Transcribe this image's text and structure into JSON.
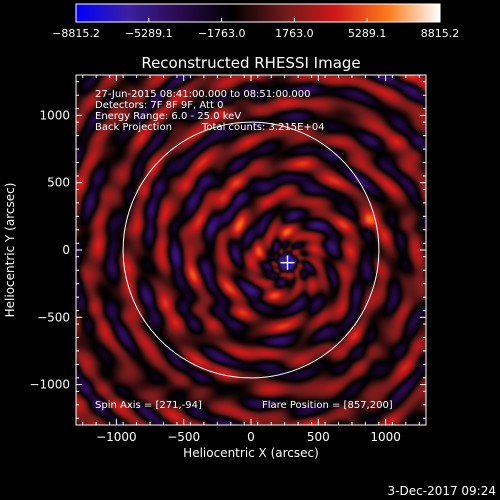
{
  "colors": {
    "background": "#000000",
    "axis": "#ffffff",
    "limb_circle": "#ffffff",
    "text": "#ffffff",
    "colormap": [
      "#0000ff",
      "#3b1fa0",
      "#2a0a4e",
      "#000000",
      "#6b1a1a",
      "#d01818",
      "#ff7a1a",
      "#ffffff"
    ]
  },
  "chart_data": {
    "type": "heatmap",
    "title": "Reconstructed RHESSI Image",
    "xlabel": "Heliocentric X (arcsec)",
    "ylabel": "Heliocentric Y (arcsec)",
    "xlim": [
      -1300,
      1300
    ],
    "ylim": [
      -1300,
      1300
    ],
    "x_ticks": [
      -1000,
      -500,
      0,
      500,
      1000
    ],
    "y_ticks": [
      -1000,
      -500,
      0,
      500,
      1000
    ],
    "x_tick_labels": [
      "−1000",
      "−500",
      "0",
      "500",
      "1000"
    ],
    "y_tick_labels": [
      "−1000",
      "−500",
      "0",
      "500",
      "1000"
    ],
    "colorbar": {
      "min": -8815.2,
      "max": 8815.2,
      "tick_values": [
        -8815.2,
        -5289.1,
        -1763.0,
        1763.0,
        5289.1,
        8815.2
      ],
      "tick_labels": [
        "−8815.2",
        "−5289.1",
        "−1763.0",
        "1763.0",
        "5289.1",
        "8815.2"
      ]
    },
    "annotations": [
      "27-Jun-2015 08:41:00.000 to 08:51:00.000",
      "Detectors: 7F 8F 9F, Att 0",
      "Energy Range: 6.0 - 25.0 keV",
      "Back Projection",
      "Total counts: 3.215E+04"
    ],
    "spin_axis_label": "Spin Axis = [271,-94]",
    "flare_position_label": "Flare Position = [857,200]",
    "spin_axis": [
      271,
      -94
    ],
    "flare_position": [
      857,
      200
    ],
    "limb_radius_arcsec": 950,
    "grid": false
  },
  "footer": {
    "timestamp": "3-Dec-2017 09:24"
  }
}
